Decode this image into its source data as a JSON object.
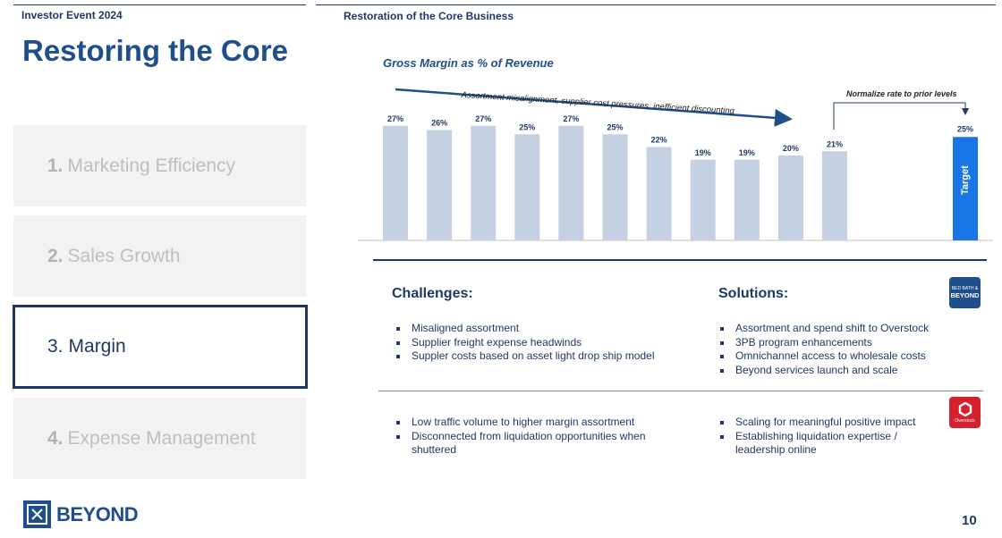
{
  "header": {
    "event": "Investor Event 2024",
    "section": "Restoration of the Core Business"
  },
  "title": "Restoring the Core",
  "nav": {
    "items": [
      {
        "num": "1.",
        "label": "Marketing Efficiency",
        "active": false
      },
      {
        "num": "2.",
        "label": "Sales Growth",
        "active": false
      },
      {
        "num": "3.",
        "label": "Margin",
        "active": true
      },
      {
        "num": "4.",
        "label": "Expense Management",
        "active": false
      }
    ]
  },
  "logo": {
    "text": "BEYOND"
  },
  "page_number": "10",
  "chart_data": {
    "type": "bar",
    "title": "Gross Margin as % of Revenue",
    "values": [
      27,
      26,
      27,
      25,
      27,
      25,
      22,
      19,
      19,
      20,
      21
    ],
    "value_labels": [
      "27%",
      "26%",
      "27%",
      "25%",
      "27%",
      "25%",
      "22%",
      "19%",
      "19%",
      "20%",
      "21%"
    ],
    "target": {
      "value": 25,
      "value_label": "25%",
      "label": "Target",
      "color": "#1976e6"
    },
    "bar_color": "#c5d0e2",
    "annotation_trend": "Assortment misalignment, supplier cost pressures, inefficient discounting",
    "annotation_target": "Normalize rate to prior levels"
  },
  "challenges": {
    "heading": "Challenges:",
    "group1": [
      "Misaligned assortment",
      "Supplier freight expense headwinds",
      "Suppler costs based on asset light drop ship model"
    ],
    "group2": [
      "Low traffic volume to higher margin assortment",
      "Disconnected from liquidation opportunities when shuttered"
    ]
  },
  "solutions": {
    "heading": "Solutions:",
    "group1": [
      "Assortment and spend shift to Overstock",
      "3PB program enhancements",
      "Omnichannel access to wholesale costs",
      "Beyond services launch and scale"
    ],
    "group2": [
      "Scaling for meaningful positive impact",
      "Establishing liquidation expertise / leadership online"
    ]
  },
  "badges": {
    "beyond": {
      "line1": "BED BATH &",
      "line2": "BEYOND",
      "color": "#1f4e8c"
    },
    "overstock": {
      "label": "Overstock",
      "color": "#d5202e"
    }
  }
}
